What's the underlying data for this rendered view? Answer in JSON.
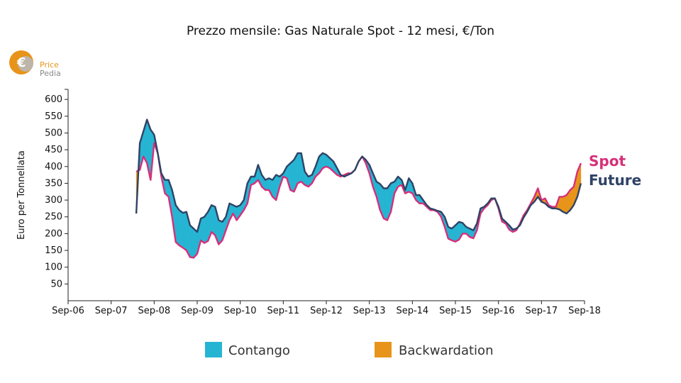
{
  "chart_data": {
    "type": "line",
    "title": "Prezzo mensile: Gas Naturale Spot - 12 mesi, €/Ton",
    "ylabel": "Euro per Tonnellata",
    "xlabel": "",
    "ylim": [
      0,
      630
    ],
    "yticks": [
      50,
      100,
      150,
      200,
      250,
      300,
      350,
      400,
      450,
      500,
      550,
      600
    ],
    "xtick_labels": [
      "Sep-06",
      "Sep-07",
      "Sep-08",
      "Sep-09",
      "Sep-10",
      "Sep-11",
      "Sep-12",
      "Sep-13",
      "Sep-14",
      "Sep-15",
      "Sep-16",
      "Sep-17",
      "Sep-18"
    ],
    "x_start": "Sep-06",
    "x_end": "Sep-18",
    "series": [
      {
        "name": "Spot",
        "color": "#d6307a",
        "points": [
          [
            "2008-04",
            385
          ],
          [
            "2008-05",
            390
          ],
          [
            "2008-06",
            430
          ],
          [
            "2008-07",
            410
          ],
          [
            "2008-08",
            360
          ],
          [
            "2008-09",
            470
          ],
          [
            "2008-10",
            440
          ],
          [
            "2008-11",
            370
          ],
          [
            "2008-12",
            320
          ],
          [
            "2009-01",
            310
          ],
          [
            "2009-02",
            250
          ],
          [
            "2009-03",
            175
          ],
          [
            "2009-04",
            165
          ],
          [
            "2009-05",
            158
          ],
          [
            "2009-06",
            150
          ],
          [
            "2009-07",
            130
          ],
          [
            "2009-08",
            128
          ],
          [
            "2009-09",
            140
          ],
          [
            "2009-10",
            180
          ],
          [
            "2009-11",
            172
          ],
          [
            "2009-12",
            178
          ],
          [
            "2010-01",
            205
          ],
          [
            "2010-02",
            195
          ],
          [
            "2010-03",
            168
          ],
          [
            "2010-04",
            180
          ],
          [
            "2010-05",
            210
          ],
          [
            "2010-06",
            240
          ],
          [
            "2010-07",
            260
          ],
          [
            "2010-08",
            240
          ],
          [
            "2010-09",
            255
          ],
          [
            "2010-10",
            270
          ],
          [
            "2010-11",
            290
          ],
          [
            "2010-12",
            345
          ],
          [
            "2011-01",
            350
          ],
          [
            "2011-02",
            360
          ],
          [
            "2011-03",
            340
          ],
          [
            "2011-04",
            330
          ],
          [
            "2011-05",
            330
          ],
          [
            "2011-06",
            310
          ],
          [
            "2011-07",
            300
          ],
          [
            "2011-08",
            340
          ],
          [
            "2011-09",
            370
          ],
          [
            "2011-10",
            365
          ],
          [
            "2011-11",
            330
          ],
          [
            "2011-12",
            325
          ],
          [
            "2012-01",
            350
          ],
          [
            "2012-02",
            355
          ],
          [
            "2012-03",
            345
          ],
          [
            "2012-04",
            340
          ],
          [
            "2012-05",
            350
          ],
          [
            "2012-06",
            370
          ],
          [
            "2012-07",
            380
          ],
          [
            "2012-08",
            395
          ],
          [
            "2012-09",
            400
          ],
          [
            "2012-10",
            395
          ],
          [
            "2012-11",
            385
          ],
          [
            "2012-12",
            375
          ],
          [
            "2013-01",
            370
          ],
          [
            "2013-02",
            375
          ],
          [
            "2013-03",
            380
          ],
          [
            "2013-04",
            380
          ],
          [
            "2013-05",
            390
          ],
          [
            "2013-06",
            415
          ],
          [
            "2013-07",
            430
          ],
          [
            "2013-08",
            410
          ],
          [
            "2013-09",
            380
          ],
          [
            "2013-10",
            340
          ],
          [
            "2013-11",
            310
          ],
          [
            "2013-12",
            270
          ],
          [
            "2014-01",
            245
          ],
          [
            "2014-02",
            240
          ],
          [
            "2014-03",
            265
          ],
          [
            "2014-04",
            320
          ],
          [
            "2014-05",
            340
          ],
          [
            "2014-06",
            345
          ],
          [
            "2014-07",
            320
          ],
          [
            "2014-08",
            325
          ],
          [
            "2014-09",
            320
          ],
          [
            "2014-10",
            300
          ],
          [
            "2014-11",
            290
          ],
          [
            "2014-12",
            290
          ],
          [
            "2015-01",
            280
          ],
          [
            "2015-02",
            270
          ],
          [
            "2015-03",
            270
          ],
          [
            "2015-04",
            265
          ],
          [
            "2015-05",
            250
          ],
          [
            "2015-06",
            220
          ],
          [
            "2015-07",
            185
          ],
          [
            "2015-08",
            180
          ],
          [
            "2015-09",
            176
          ],
          [
            "2015-10",
            182
          ],
          [
            "2015-11",
            200
          ],
          [
            "2015-12",
            200
          ],
          [
            "2016-01",
            190
          ],
          [
            "2016-02",
            186
          ],
          [
            "2016-03",
            210
          ],
          [
            "2016-04",
            260
          ],
          [
            "2016-05",
            275
          ],
          [
            "2016-06",
            285
          ],
          [
            "2016-07",
            300
          ],
          [
            "2016-08",
            305
          ],
          [
            "2016-09",
            275
          ],
          [
            "2016-10",
            236
          ],
          [
            "2016-11",
            230
          ],
          [
            "2016-12",
            212
          ],
          [
            "2017-01",
            205
          ],
          [
            "2017-02",
            210
          ],
          [
            "2017-03",
            230
          ],
          [
            "2017-04",
            255
          ],
          [
            "2017-05",
            270
          ],
          [
            "2017-06",
            290
          ],
          [
            "2017-07",
            310
          ],
          [
            "2017-08",
            335
          ],
          [
            "2017-09",
            300
          ],
          [
            "2017-10",
            305
          ],
          [
            "2017-11",
            285
          ],
          [
            "2017-12",
            280
          ],
          [
            "2018-01",
            280
          ],
          [
            "2018-02",
            310
          ],
          [
            "2018-03",
            310
          ],
          [
            "2018-04",
            315
          ],
          [
            "2018-05",
            330
          ],
          [
            "2018-06",
            340
          ],
          [
            "2018-07",
            385
          ],
          [
            "2018-08",
            410
          ]
        ]
      },
      {
        "name": "Future",
        "color": "#2f4366",
        "points": [
          [
            "2008-04",
            260
          ],
          [
            "2008-05",
            470
          ],
          [
            "2008-06",
            505
          ],
          [
            "2008-07",
            540
          ],
          [
            "2008-08",
            510
          ],
          [
            "2008-09",
            495
          ],
          [
            "2008-10",
            440
          ],
          [
            "2008-11",
            380
          ],
          [
            "2008-12",
            360
          ],
          [
            "2009-01",
            360
          ],
          [
            "2009-02",
            330
          ],
          [
            "2009-03",
            285
          ],
          [
            "2009-04",
            270
          ],
          [
            "2009-05",
            262
          ],
          [
            "2009-06",
            265
          ],
          [
            "2009-07",
            225
          ],
          [
            "2009-08",
            215
          ],
          [
            "2009-09",
            205
          ],
          [
            "2009-10",
            245
          ],
          [
            "2009-11",
            250
          ],
          [
            "2009-12",
            265
          ],
          [
            "2010-01",
            285
          ],
          [
            "2010-02",
            280
          ],
          [
            "2010-03",
            240
          ],
          [
            "2010-04",
            235
          ],
          [
            "2010-05",
            250
          ],
          [
            "2010-06",
            290
          ],
          [
            "2010-07",
            285
          ],
          [
            "2010-08",
            280
          ],
          [
            "2010-09",
            285
          ],
          [
            "2010-10",
            300
          ],
          [
            "2010-11",
            350
          ],
          [
            "2010-12",
            370
          ],
          [
            "2011-01",
            370
          ],
          [
            "2011-02",
            405
          ],
          [
            "2011-03",
            375
          ],
          [
            "2011-04",
            360
          ],
          [
            "2011-05",
            365
          ],
          [
            "2011-06",
            360
          ],
          [
            "2011-07",
            375
          ],
          [
            "2011-08",
            370
          ],
          [
            "2011-09",
            380
          ],
          [
            "2011-10",
            400
          ],
          [
            "2011-11",
            410
          ],
          [
            "2011-12",
            420
          ],
          [
            "2012-01",
            440
          ],
          [
            "2012-02",
            440
          ],
          [
            "2012-03",
            385
          ],
          [
            "2012-04",
            370
          ],
          [
            "2012-05",
            375
          ],
          [
            "2012-06",
            400
          ],
          [
            "2012-07",
            430
          ],
          [
            "2012-08",
            440
          ],
          [
            "2012-09",
            435
          ],
          [
            "2012-10",
            425
          ],
          [
            "2012-11",
            415
          ],
          [
            "2012-12",
            395
          ],
          [
            "2013-01",
            375
          ],
          [
            "2013-02",
            370
          ],
          [
            "2013-03",
            375
          ],
          [
            "2013-04",
            380
          ],
          [
            "2013-05",
            390
          ],
          [
            "2013-06",
            415
          ],
          [
            "2013-07",
            430
          ],
          [
            "2013-08",
            420
          ],
          [
            "2013-09",
            405
          ],
          [
            "2013-10",
            380
          ],
          [
            "2013-11",
            355
          ],
          [
            "2013-12",
            348
          ],
          [
            "2014-01",
            335
          ],
          [
            "2014-02",
            335
          ],
          [
            "2014-03",
            350
          ],
          [
            "2014-04",
            355
          ],
          [
            "2014-05",
            370
          ],
          [
            "2014-06",
            360
          ],
          [
            "2014-07",
            330
          ],
          [
            "2014-08",
            365
          ],
          [
            "2014-09",
            350
          ],
          [
            "2014-10",
            315
          ],
          [
            "2014-11",
            315
          ],
          [
            "2014-12",
            300
          ],
          [
            "2015-01",
            285
          ],
          [
            "2015-02",
            275
          ],
          [
            "2015-03",
            272
          ],
          [
            "2015-04",
            268
          ],
          [
            "2015-05",
            265
          ],
          [
            "2015-06",
            250
          ],
          [
            "2015-07",
            220
          ],
          [
            "2015-08",
            215
          ],
          [
            "2015-09",
            225
          ],
          [
            "2015-10",
            235
          ],
          [
            "2015-11",
            232
          ],
          [
            "2015-12",
            220
          ],
          [
            "2016-01",
            215
          ],
          [
            "2016-02",
            210
          ],
          [
            "2016-03",
            230
          ],
          [
            "2016-04",
            275
          ],
          [
            "2016-05",
            280
          ],
          [
            "2016-06",
            290
          ],
          [
            "2016-07",
            305
          ],
          [
            "2016-08",
            305
          ],
          [
            "2016-09",
            280
          ],
          [
            "2016-10",
            245
          ],
          [
            "2016-11",
            235
          ],
          [
            "2016-12",
            225
          ],
          [
            "2017-01",
            212
          ],
          [
            "2017-02",
            215
          ],
          [
            "2017-03",
            225
          ],
          [
            "2017-04",
            248
          ],
          [
            "2017-05",
            265
          ],
          [
            "2017-06",
            285
          ],
          [
            "2017-07",
            295
          ],
          [
            "2017-08",
            310
          ],
          [
            "2017-09",
            295
          ],
          [
            "2017-10",
            290
          ],
          [
            "2017-11",
            280
          ],
          [
            "2017-12",
            275
          ],
          [
            "2018-01",
            275
          ],
          [
            "2018-02",
            272
          ],
          [
            "2018-03",
            265
          ],
          [
            "2018-04",
            260
          ],
          [
            "2018-05",
            270
          ],
          [
            "2018-06",
            285
          ],
          [
            "2018-07",
            310
          ],
          [
            "2018-08",
            350
          ]
        ]
      }
    ],
    "legend": {
      "placement": "bottom",
      "items": [
        {
          "label": "Contango",
          "color": "#25b5d3"
        },
        {
          "label": "Backwardation",
          "color": "#e8941a"
        }
      ]
    },
    "end_labels": [
      {
        "label": "Spot",
        "color": "#d6307a"
      },
      {
        "label": "Future",
        "color": "#2f4366"
      }
    ],
    "grid": false
  },
  "logo": {
    "line1": "Price",
    "line2": "Pedia",
    "color_primary": "#e8941a",
    "color_secondary": "#888888"
  }
}
